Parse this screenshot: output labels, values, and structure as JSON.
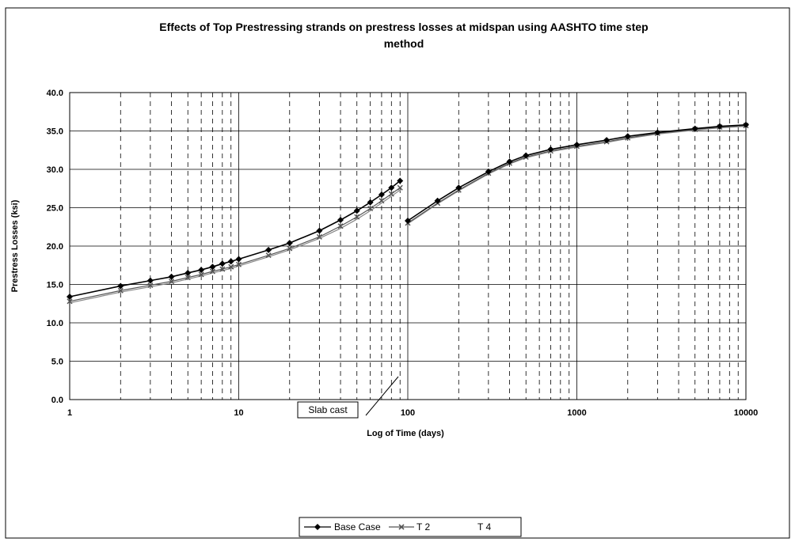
{
  "chart_data": {
    "type": "line",
    "title_line1": "Effects of Top Prestressing strands on prestress losses at midspan using AASHTO time step",
    "title_line2": "method",
    "xlabel": "Log of Time (days)",
    "ylabel": "Prestress Losses (ksi)",
    "x_scale": "log",
    "xlim": [
      1,
      10000
    ],
    "ylim": [
      0,
      40
    ],
    "x_ticks": [
      1,
      10,
      100,
      1000,
      10000
    ],
    "x_tick_labels": [
      "1",
      "10",
      "100",
      "1000",
      "10000"
    ],
    "y_ticks": [
      0,
      5,
      10,
      15,
      20,
      25,
      30,
      35,
      40
    ],
    "y_tick_labels": [
      "0.0",
      "5.0",
      "10.0",
      "15.0",
      "20.0",
      "25.0",
      "30.0",
      "35.0",
      "40.0"
    ],
    "grid": {
      "major": "solid",
      "minor": "dashed"
    },
    "legend_position": "bottom",
    "annotation": "Slab cast",
    "series": [
      {
        "name": "Base Case",
        "marker": "diamond",
        "color": "#000000",
        "x": [
          1,
          2,
          3,
          4,
          5,
          6,
          7,
          8,
          9,
          10,
          15,
          20,
          30,
          40,
          50,
          60,
          70,
          80,
          90,
          100,
          150,
          200,
          300,
          400,
          500,
          700,
          1000,
          1500,
          2000,
          3000,
          5000,
          7000,
          10000
        ],
        "y": [
          13.4,
          14.8,
          15.5,
          16.0,
          16.5,
          16.9,
          17.3,
          17.7,
          18.0,
          18.3,
          19.5,
          20.4,
          22.0,
          23.4,
          24.6,
          25.7,
          26.7,
          27.6,
          28.5,
          23.3,
          25.9,
          27.6,
          29.7,
          31.0,
          31.8,
          32.6,
          33.2,
          33.8,
          34.3,
          34.8,
          35.3,
          35.6,
          35.8
        ]
      },
      {
        "name": "T 2",
        "marker": "cross",
        "color": "#555555",
        "x": [
          1,
          2,
          3,
          4,
          5,
          6,
          7,
          8,
          9,
          10,
          15,
          20,
          30,
          40,
          50,
          60,
          70,
          80,
          90,
          100,
          150,
          200,
          300,
          400,
          500,
          700,
          1000,
          1500,
          2000,
          3000,
          5000,
          7000,
          10000
        ],
        "y": [
          12.8,
          14.2,
          14.9,
          15.4,
          15.9,
          16.3,
          16.7,
          17.0,
          17.3,
          17.6,
          18.8,
          19.7,
          21.2,
          22.6,
          23.8,
          24.9,
          25.9,
          26.8,
          27.6,
          23.0,
          25.6,
          27.3,
          29.5,
          30.8,
          31.6,
          32.4,
          33.0,
          33.6,
          34.1,
          34.7,
          35.2,
          35.5,
          35.7
        ]
      },
      {
        "name": "T 4",
        "marker": "none",
        "color": "#888888",
        "x": [
          1,
          2,
          3,
          4,
          5,
          6,
          7,
          8,
          9,
          10,
          15,
          20,
          30,
          40,
          50,
          60,
          70,
          80,
          90,
          100,
          150,
          200,
          300,
          400,
          500,
          700,
          1000,
          1500,
          2000,
          3000,
          5000,
          7000,
          10000
        ],
        "y": [
          12.6,
          14.0,
          14.7,
          15.2,
          15.7,
          16.1,
          16.5,
          16.8,
          17.1,
          17.4,
          18.6,
          19.5,
          21.0,
          22.3,
          23.5,
          24.6,
          25.6,
          26.5,
          27.3,
          22.9,
          25.5,
          27.2,
          29.4,
          30.7,
          31.5,
          32.3,
          32.9,
          33.5,
          34.0,
          34.6,
          35.1,
          35.4,
          35.6
        ]
      }
    ]
  }
}
